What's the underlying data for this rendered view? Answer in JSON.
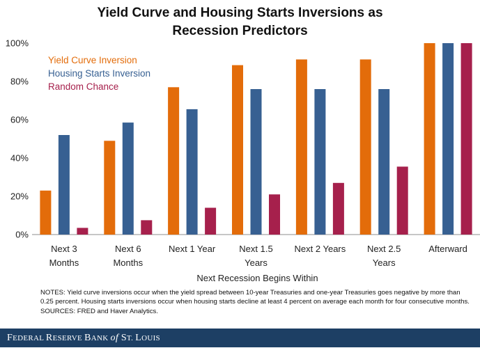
{
  "title_line1": "Yield Curve and Housing Starts Inversions as",
  "title_line2": "Recession Predictors",
  "chart_data": {
    "type": "bar",
    "title": "Yield Curve and Housing Starts Inversions as Recession Predictors",
    "xlabel": "Next Recession Begins Within",
    "ylabel": "",
    "ylim": [
      0,
      100
    ],
    "yticks": [
      "0%",
      "20%",
      "40%",
      "60%",
      "80%",
      "100%"
    ],
    "categories": [
      [
        "Next 3",
        "Months"
      ],
      [
        "Next 6",
        "Months"
      ],
      [
        "Next 1 Year"
      ],
      [
        "Next 1.5",
        "Years"
      ],
      [
        "Next 2 Years"
      ],
      [
        "Next 2.5",
        "Years"
      ],
      [
        "Afterward"
      ]
    ],
    "series": [
      {
        "name": "Yield Curve Inversion",
        "color": "#e36c0a",
        "values": [
          23,
          49,
          77,
          88.5,
          91.5,
          91.5,
          100
        ]
      },
      {
        "name": "Housing Starts Inversion",
        "color": "#376092",
        "values": [
          52,
          58.5,
          65.5,
          76,
          76,
          76,
          100
        ]
      },
      {
        "name": "Random Chance",
        "color": "#a6204c",
        "values": [
          3.5,
          7.5,
          14,
          21,
          27,
          35.5,
          100
        ]
      }
    ],
    "legend_position": "top-left",
    "grid": false
  },
  "notes_line": "NOTES: Yield curve inversions occur when the yield spread between 10-year Treasuries and one-year Treasuries goes negative by more than 0.25 percent. Housing starts inversions occur when housing starts decline at least 4 percent on average each month for four consecutive months.",
  "sources_line": "SOURCES: FRED and Haver Analytics.",
  "footer": {
    "part1": "F",
    "part2": "EDERAL ",
    "part3": "R",
    "part4": "ESERVE ",
    "part5": "B",
    "part6": "ANK ",
    "part7": "of",
    "part8": " S",
    "part9": "T. ",
    "part10": "L",
    "part11": "OUIS"
  }
}
